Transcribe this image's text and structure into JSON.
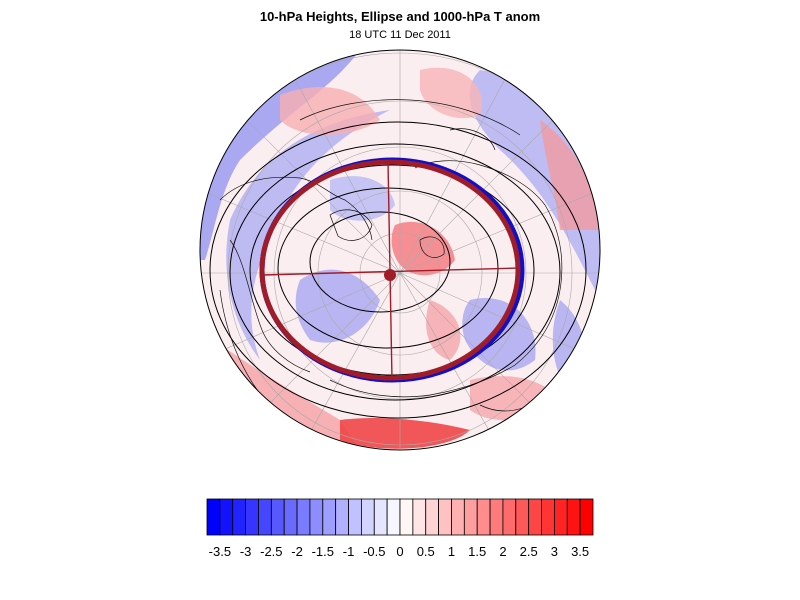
{
  "header": {
    "title": "10-hPa Heights, Ellipse and 1000-hPa T anom",
    "subtitle": "18 UTC 11 Dec 2011"
  },
  "map": {
    "projection": "north-polar-stereographic",
    "fill_variable": "1000-hPa T anom",
    "contour_variable": "10-hPa Heights",
    "ellipse_colors": {
      "inner": "#1010c8",
      "outer": "#a01c28"
    }
  },
  "colorbar": {
    "labels": [
      "-3.5",
      "-3",
      "-2.5",
      "-2",
      "-1.5",
      "-1",
      "-0.5",
      "0",
      "0.5",
      "1",
      "1.5",
      "2",
      "2.5",
      "3",
      "3.5"
    ],
    "levels": [
      -3.5,
      -3.25,
      -3,
      -2.75,
      -2.5,
      -2.25,
      -2,
      -1.75,
      -1.5,
      -1.25,
      -1,
      -0.75,
      -0.5,
      -0.25,
      0,
      0.25,
      0.5,
      0.75,
      1,
      1.25,
      1.5,
      1.75,
      2,
      2.25,
      2.5,
      2.75,
      3,
      3.25,
      3.5
    ],
    "colors": {
      "min": "#0000ff",
      "mid": "#ffffff",
      "max": "#ff0000"
    }
  }
}
